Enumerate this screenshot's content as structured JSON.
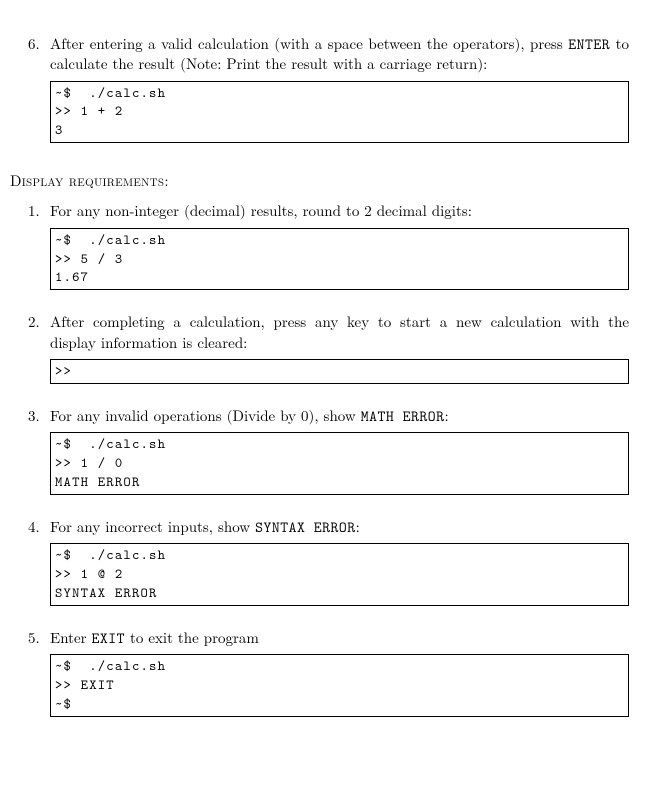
{
  "colors": {
    "text": "#000000",
    "background": "#ffffff",
    "box_border": "#000000"
  },
  "fonts": {
    "body_family": "Latin Modern Roman / Computer Modern serif",
    "mono_family": "Latin Modern Mono / Courier",
    "body_size_pt": 11,
    "mono_size_pt": 10
  },
  "top_item": {
    "number": "6.",
    "text_before_enter": "After entering a valid calculation (with a space between the operators), press ",
    "enter": "ENTER",
    "text_after_enter": " to calculate the result (Note: Print the result with a carriage return):",
    "code": {
      "lines": [
        "~$  ./calc.sh",
        ">> 1 + 2",
        "3"
      ]
    }
  },
  "section_heading": "Display requirements:",
  "items": [
    {
      "number": "1.",
      "text": "For any non-integer (decimal) results, round to 2 decimal digits:",
      "code": {
        "lines": [
          "~$  ./calc.sh",
          ">> 5 / 3",
          "1.67"
        ]
      }
    },
    {
      "number": "2.",
      "text": "After completing a calculation, press any key to start a new calculation with the display information is cleared:",
      "code": {
        "lines": [
          ">>"
        ]
      }
    },
    {
      "number": "3.",
      "text_before_code": "For any invalid operations (Divide by 0), show ",
      "inline_code": "MATH ERROR",
      "text_after_code": ":",
      "code": {
        "lines": [
          "~$  ./calc.sh",
          ">> 1 / 0",
          "MATH ERROR"
        ]
      }
    },
    {
      "number": "4.",
      "text_before_code": "For any incorrect inputs, show ",
      "inline_code": "SYNTAX ERROR",
      "text_after_code": ":",
      "code": {
        "lines": [
          "~$  ./calc.sh",
          ">> 1 @ 2",
          "SYNTAX ERROR"
        ]
      }
    },
    {
      "number": "5.",
      "text_before_code": "Enter ",
      "inline_code": "EXIT",
      "text_after_code": " to exit the program",
      "code": {
        "lines": [
          "~$  ./calc.sh",
          ">> EXIT",
          "~$"
        ]
      }
    }
  ]
}
